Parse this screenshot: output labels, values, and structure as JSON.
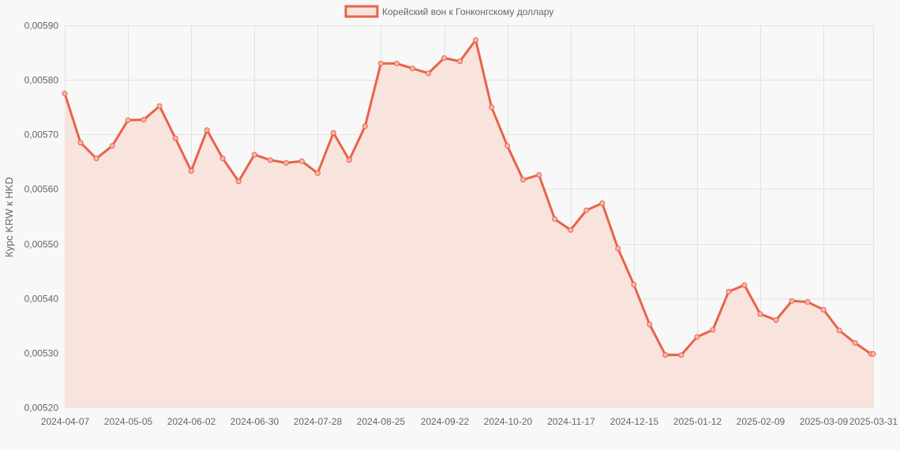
{
  "chart_data": {
    "type": "area",
    "legend_position": "top",
    "grid": true,
    "ylabel": "Курс KRW к HKD",
    "xlabel": "",
    "ylim": [
      0.0052,
      0.0059
    ],
    "y_ticks": [
      "0,00520",
      "0,00530",
      "0,00540",
      "0,00550",
      "0,00560",
      "0,00570",
      "0,00580",
      "0,00590"
    ],
    "x_tick_labels": [
      "2024-04-07",
      "2024-05-05",
      "2024-06-02",
      "2024-06-30",
      "2024-07-28",
      "2024-08-25",
      "2024-09-22",
      "2024-10-20",
      "2024-11-17",
      "2024-12-15",
      "2025-01-12",
      "2025-02-09",
      "2025-03-09",
      "2025-03-31"
    ],
    "colors": {
      "line": "#e8634a",
      "fill": "#f9e3dd",
      "grid": "#e2e2e2",
      "background": "#f8f8f8"
    },
    "series": [
      {
        "name": "Корейский вон к Гонконгскому доллару",
        "x": [
          "2024-04-07",
          "2024-04-14",
          "2024-04-21",
          "2024-04-28",
          "2024-05-05",
          "2024-05-12",
          "2024-05-19",
          "2024-05-26",
          "2024-06-02",
          "2024-06-09",
          "2024-06-16",
          "2024-06-23",
          "2024-06-30",
          "2024-07-07",
          "2024-07-14",
          "2024-07-21",
          "2024-07-28",
          "2024-08-04",
          "2024-08-11",
          "2024-08-18",
          "2024-08-25",
          "2024-09-01",
          "2024-09-08",
          "2024-09-15",
          "2024-09-22",
          "2024-09-29",
          "2024-10-06",
          "2024-10-13",
          "2024-10-20",
          "2024-10-27",
          "2024-11-03",
          "2024-11-10",
          "2024-11-17",
          "2024-11-24",
          "2024-12-01",
          "2024-12-08",
          "2024-12-15",
          "2024-12-22",
          "2024-12-29",
          "2025-01-05",
          "2025-01-12",
          "2025-01-19",
          "2025-01-26",
          "2025-02-02",
          "2025-02-09",
          "2025-02-16",
          "2025-02-23",
          "2025-03-02",
          "2025-03-09",
          "2025-03-16",
          "2025-03-23",
          "2025-03-30",
          "2025-03-31"
        ],
        "values": [
          0.005775,
          0.005685,
          0.005656,
          0.005679,
          0.005726,
          0.005727,
          0.005752,
          0.005693,
          0.005633,
          0.005708,
          0.005656,
          0.005614,
          0.005663,
          0.005653,
          0.005648,
          0.005651,
          0.005629,
          0.005703,
          0.005653,
          0.005715,
          0.00583,
          0.00583,
          0.005821,
          0.005812,
          0.00584,
          0.005834,
          0.005873,
          0.00575,
          0.005679,
          0.005617,
          0.005626,
          0.005545,
          0.005525,
          0.005561,
          0.005574,
          0.005491,
          0.005425,
          0.005352,
          0.005296,
          0.005296,
          0.005329,
          0.005342,
          0.005412,
          0.005424,
          0.005371,
          0.00536,
          0.005395,
          0.005393,
          0.005379,
          0.005341,
          0.005318,
          0.005298,
          0.005298
        ]
      }
    ]
  }
}
